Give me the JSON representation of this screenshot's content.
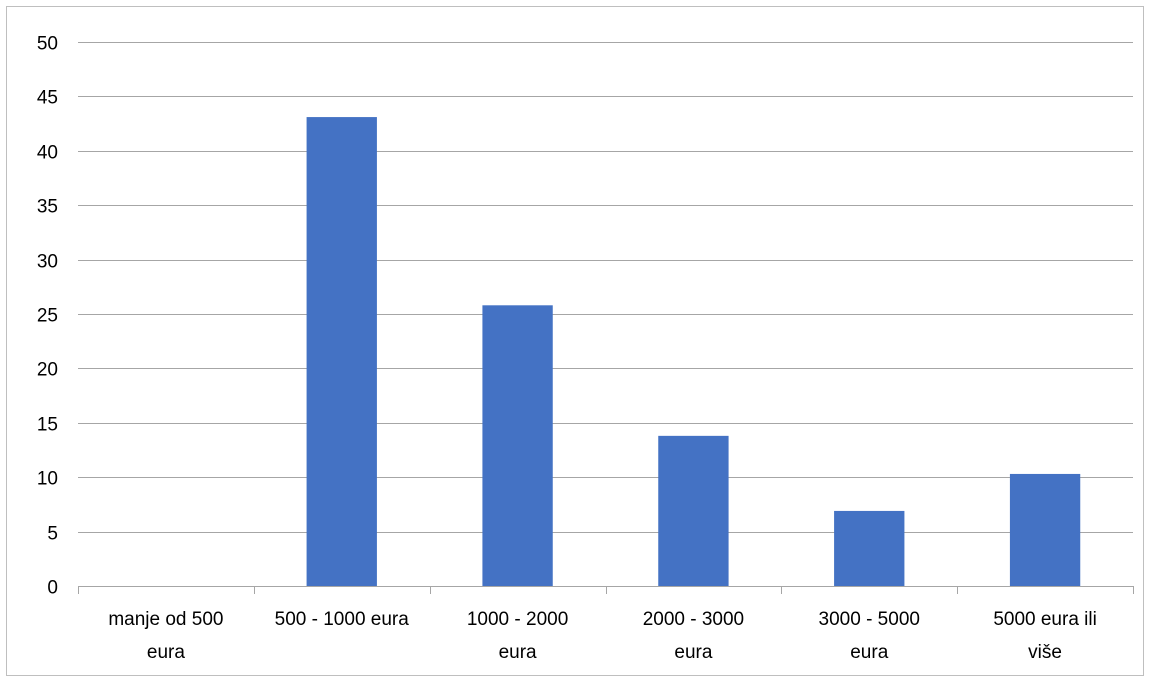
{
  "chart_data": {
    "type": "bar",
    "title": "",
    "xlabel": "",
    "ylabel": "",
    "categories": [
      [
        "manje od 500",
        "eura"
      ],
      [
        "500 - 1000 eura"
      ],
      [
        "1000 - 2000",
        "eura"
      ],
      [
        "2000 - 3000",
        "eura"
      ],
      [
        "3000 - 5000",
        "eura"
      ],
      [
        "5000 eura ili",
        "više"
      ]
    ],
    "values": [
      0,
      43.1,
      25.8,
      13.8,
      6.9,
      10.3
    ],
    "ylim": [
      0,
      50
    ],
    "yticks": [
      0,
      5,
      10,
      15,
      20,
      25,
      30,
      35,
      40,
      45,
      50
    ],
    "grid": true,
    "legend": "none",
    "bar_color": "#4472C4",
    "grid_color": "#a6a6a6"
  }
}
